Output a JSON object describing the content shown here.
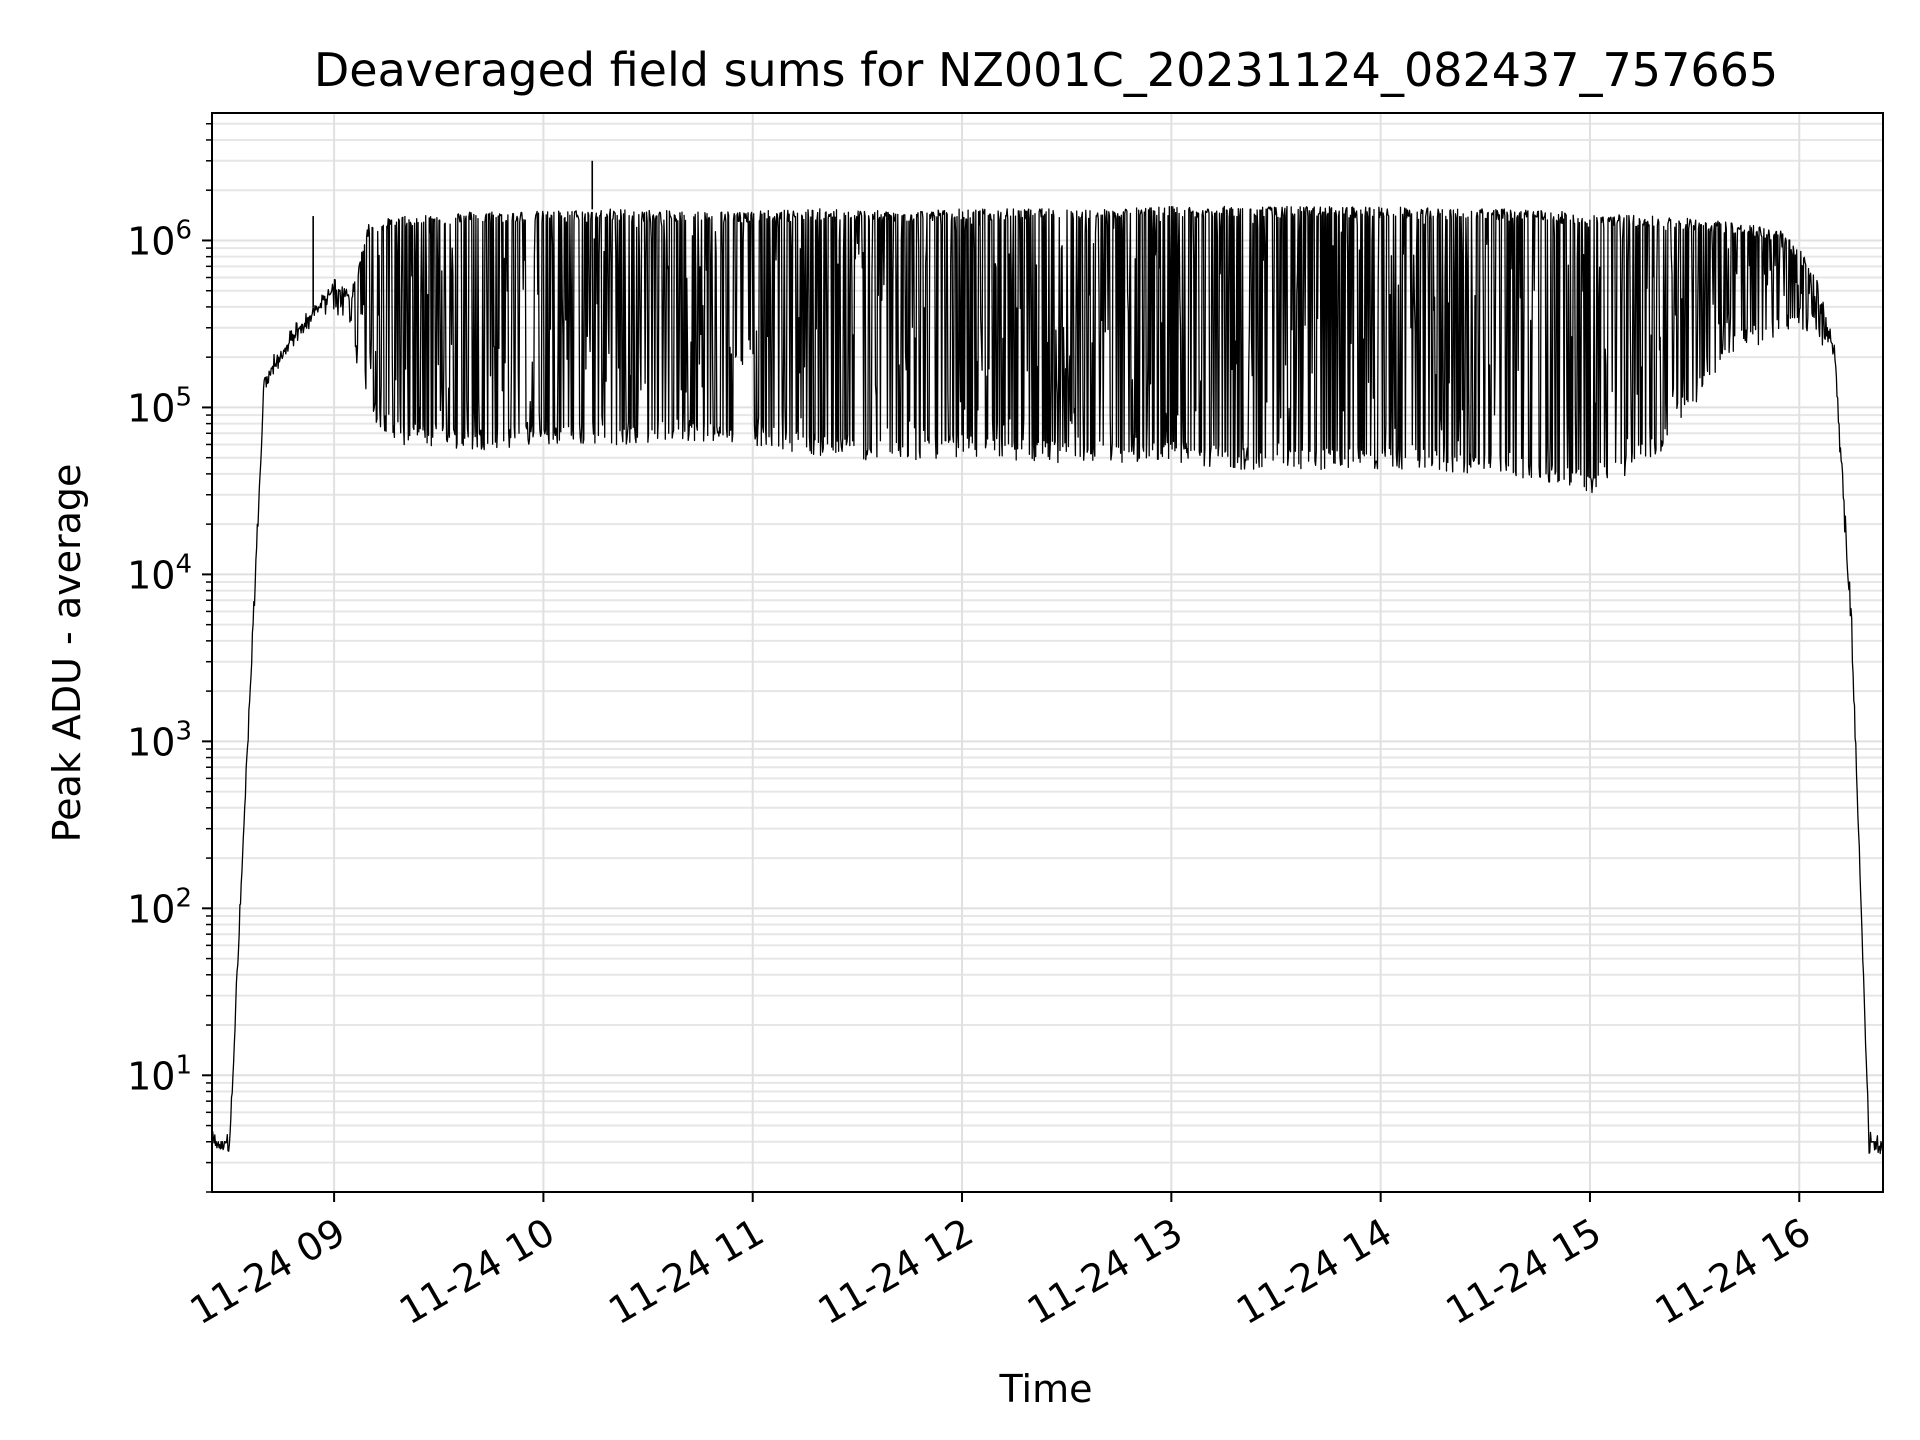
{
  "chart_data": {
    "type": "line",
    "title": "Deaveraged field sums for NZ001C_20231124_082437_757665",
    "xlabel": "Time",
    "ylabel": "Peak ADU - average",
    "yscale": "log",
    "grid": "major and minor",
    "x_ticks": [
      "11-24 09",
      "11-24 10",
      "11-24 11",
      "11-24 12",
      "11-24 13",
      "11-24 14",
      "11-24 15",
      "11-24 16"
    ],
    "y_ticks": [
      10,
      100,
      1000,
      10000,
      100000,
      1000000
    ],
    "y_tick_labels": [
      {
        "base": "10",
        "exp": "1"
      },
      {
        "base": "10",
        "exp": "2"
      },
      {
        "base": "10",
        "exp": "3"
      },
      {
        "base": "10",
        "exp": "4"
      },
      {
        "base": "10",
        "exp": "5"
      },
      {
        "base": "10",
        "exp": "6"
      }
    ],
    "ylim": [
      2,
      5800000
    ],
    "xlim": [
      "2023-11-24 08:25",
      "2023-11-24 16:24"
    ],
    "series": [
      {
        "color": "#000000",
        "envelope_upper": {
          "x": [
            "08:25",
            "08:30",
            "08:40",
            "08:50",
            "09:00",
            "09:05",
            "09:10",
            "09:20",
            "09:40",
            "10:00",
            "10:20",
            "10:40",
            "11:00",
            "11:20",
            "11:40",
            "12:00",
            "12:20",
            "12:40",
            "13:00",
            "13:20",
            "13:40",
            "14:00",
            "14:20",
            "14:40",
            "15:00",
            "15:20",
            "15:40",
            "15:55",
            "16:00",
            "16:05",
            "16:10",
            "16:15",
            "16:20",
            "16:24"
          ],
          "y": [
            4,
            4,
            150000,
            300000,
            600000,
            500000,
            1300000,
            1400000,
            1500000,
            1500000,
            1550000,
            1500000,
            1500000,
            1550000,
            1500000,
            1550000,
            1550000,
            1550000,
            1600000,
            1600000,
            1600000,
            1600000,
            1550000,
            1550000,
            1450000,
            1400000,
            1300000,
            1150000,
            900000,
            600000,
            250000,
            6000,
            4,
            4
          ]
        },
        "envelope_lower": {
          "x": [
            "08:25",
            "08:30",
            "08:40",
            "08:50",
            "09:00",
            "09:05",
            "09:10",
            "09:20",
            "09:40",
            "10:00",
            "10:20",
            "10:40",
            "11:00",
            "11:20",
            "11:40",
            "12:00",
            "12:20",
            "12:40",
            "13:00",
            "13:20",
            "13:40",
            "14:00",
            "14:20",
            "14:40",
            "15:00",
            "15:20",
            "15:40",
            "15:55",
            "16:00",
            "16:05",
            "16:10",
            "16:15",
            "16:20",
            "16:24"
          ],
          "y": [
            4,
            4,
            150000,
            300000,
            450000,
            300000,
            100000,
            70000,
            65000,
            70000,
            70000,
            75000,
            70000,
            60000,
            55000,
            60000,
            55000,
            55000,
            55000,
            50000,
            50000,
            50000,
            48000,
            45000,
            35000,
            60000,
            250000,
            300000,
            350000,
            300000,
            200000,
            4000,
            4,
            4
          ]
        },
        "spikes": [
          {
            "x": "08:54",
            "y": 1400000
          },
          {
            "x": "10:14",
            "y": 3000000
          }
        ]
      }
    ]
  }
}
